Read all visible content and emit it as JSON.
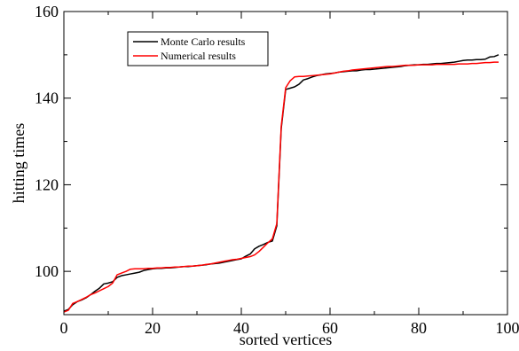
{
  "chart_data": {
    "type": "line",
    "title": "",
    "xlabel": "sorted vertices",
    "ylabel": "hitting times",
    "xlim": [
      0,
      100
    ],
    "ylim": [
      90,
      160
    ],
    "xticks": [
      0,
      20,
      40,
      60,
      80,
      100
    ],
    "xtick_labels": [
      "0",
      "20",
      "40",
      "60",
      "80",
      "100"
    ],
    "yticks": [
      100,
      120,
      140,
      160
    ],
    "ytick_labels": [
      "100",
      "120",
      "140",
      "160"
    ],
    "grid": false,
    "legend_position": "top-left",
    "series": [
      {
        "name": "Monte Carlo results",
        "color": "#000000",
        "points": [
          [
            0,
            90.8
          ],
          [
            1,
            91.2
          ],
          [
            2,
            92.3
          ],
          [
            3,
            93.0
          ],
          [
            4,
            93.4
          ],
          [
            5,
            93.9
          ],
          [
            6,
            94.6
          ],
          [
            7,
            95.4
          ],
          [
            8,
            96.1
          ],
          [
            9,
            97.1
          ],
          [
            10,
            97.3
          ],
          [
            11,
            97.6
          ],
          [
            12,
            98.6
          ],
          [
            13,
            99.0
          ],
          [
            14,
            99.2
          ],
          [
            15,
            99.4
          ],
          [
            16,
            99.6
          ],
          [
            17,
            99.8
          ],
          [
            18,
            100.2
          ],
          [
            19,
            100.4
          ],
          [
            20,
            100.6
          ],
          [
            21,
            100.7
          ],
          [
            22,
            100.7
          ],
          [
            23,
            100.8
          ],
          [
            24,
            100.8
          ],
          [
            25,
            100.9
          ],
          [
            26,
            101.0
          ],
          [
            27,
            101.1
          ],
          [
            28,
            101.1
          ],
          [
            29,
            101.2
          ],
          [
            30,
            101.3
          ],
          [
            31,
            101.4
          ],
          [
            32,
            101.5
          ],
          [
            33,
            101.7
          ],
          [
            34,
            101.8
          ],
          [
            35,
            101.9
          ],
          [
            36,
            102.1
          ],
          [
            37,
            102.3
          ],
          [
            38,
            102.5
          ],
          [
            39,
            102.7
          ],
          [
            40,
            102.9
          ],
          [
            41,
            103.5
          ],
          [
            42,
            104.0
          ],
          [
            43,
            105.2
          ],
          [
            44,
            105.8
          ],
          [
            45,
            106.2
          ],
          [
            46,
            106.7
          ],
          [
            47,
            107.0
          ],
          [
            48,
            110.5
          ],
          [
            49,
            133.0
          ],
          [
            50,
            142.0
          ],
          [
            51,
            142.3
          ],
          [
            52,
            142.6
          ],
          [
            53,
            143.2
          ],
          [
            54,
            144.2
          ],
          [
            55,
            144.5
          ],
          [
            56,
            144.9
          ],
          [
            57,
            145.2
          ],
          [
            58,
            145.4
          ],
          [
            59,
            145.6
          ],
          [
            60,
            145.7
          ],
          [
            61,
            145.8
          ],
          [
            62,
            146.0
          ],
          [
            63,
            146.1
          ],
          [
            64,
            146.2
          ],
          [
            65,
            146.3
          ],
          [
            66,
            146.3
          ],
          [
            67,
            146.5
          ],
          [
            68,
            146.6
          ],
          [
            69,
            146.6
          ],
          [
            70,
            146.7
          ],
          [
            71,
            146.8
          ],
          [
            72,
            146.9
          ],
          [
            73,
            147.0
          ],
          [
            74,
            147.1
          ],
          [
            75,
            147.2
          ],
          [
            76,
            147.3
          ],
          [
            77,
            147.5
          ],
          [
            78,
            147.6
          ],
          [
            79,
            147.7
          ],
          [
            80,
            147.7
          ],
          [
            81,
            147.8
          ],
          [
            82,
            147.8
          ],
          [
            83,
            147.9
          ],
          [
            84,
            148.0
          ],
          [
            85,
            148.0
          ],
          [
            86,
            148.1
          ],
          [
            87,
            148.2
          ],
          [
            88,
            148.3
          ],
          [
            89,
            148.5
          ],
          [
            90,
            148.7
          ],
          [
            91,
            148.8
          ],
          [
            92,
            148.8
          ],
          [
            93,
            148.9
          ],
          [
            94,
            148.9
          ],
          [
            95,
            149.0
          ],
          [
            96,
            149.5
          ],
          [
            97,
            149.6
          ],
          [
            98,
            150.0
          ]
        ]
      },
      {
        "name": "Numerical results",
        "color": "#ff0000",
        "points": [
          [
            0,
            90.6
          ],
          [
            1,
            91.0
          ],
          [
            2,
            92.6
          ],
          [
            3,
            93.0
          ],
          [
            4,
            93.5
          ],
          [
            5,
            94.0
          ],
          [
            6,
            94.6
          ],
          [
            7,
            95.0
          ],
          [
            8,
            95.5
          ],
          [
            9,
            96.0
          ],
          [
            10,
            96.5
          ],
          [
            11,
            97.3
          ],
          [
            12,
            99.2
          ],
          [
            13,
            99.6
          ],
          [
            14,
            100.0
          ],
          [
            15,
            100.5
          ],
          [
            16,
            100.6
          ],
          [
            17,
            100.6
          ],
          [
            18,
            100.6
          ],
          [
            19,
            100.7
          ],
          [
            20,
            100.7
          ],
          [
            21,
            100.8
          ],
          [
            22,
            100.8
          ],
          [
            23,
            100.9
          ],
          [
            24,
            100.9
          ],
          [
            25,
            101.0
          ],
          [
            26,
            101.0
          ],
          [
            27,
            101.1
          ],
          [
            28,
            101.2
          ],
          [
            29,
            101.2
          ],
          [
            30,
            101.3
          ],
          [
            31,
            101.4
          ],
          [
            32,
            101.6
          ],
          [
            33,
            101.7
          ],
          [
            34,
            101.9
          ],
          [
            35,
            102.1
          ],
          [
            36,
            102.3
          ],
          [
            37,
            102.5
          ],
          [
            38,
            102.7
          ],
          [
            39,
            102.8
          ],
          [
            40,
            103.0
          ],
          [
            41,
            103.2
          ],
          [
            42,
            103.4
          ],
          [
            43,
            103.8
          ],
          [
            44,
            104.6
          ],
          [
            45,
            105.6
          ],
          [
            46,
            106.6
          ],
          [
            47,
            107.5
          ],
          [
            48,
            111.0
          ],
          [
            49,
            133.5
          ],
          [
            50,
            142.4
          ],
          [
            51,
            144.0
          ],
          [
            52,
            144.9
          ],
          [
            53,
            145.0
          ],
          [
            54,
            145.0
          ],
          [
            55,
            145.1
          ],
          [
            56,
            145.2
          ],
          [
            57,
            145.3
          ],
          [
            58,
            145.4
          ],
          [
            59,
            145.5
          ],
          [
            60,
            145.6
          ],
          [
            61,
            145.8
          ],
          [
            62,
            146.0
          ],
          [
            63,
            146.2
          ],
          [
            64,
            146.3
          ],
          [
            65,
            146.5
          ],
          [
            66,
            146.6
          ],
          [
            67,
            146.7
          ],
          [
            68,
            146.8
          ],
          [
            69,
            146.9
          ],
          [
            70,
            147.0
          ],
          [
            71,
            147.1
          ],
          [
            72,
            147.2
          ],
          [
            73,
            147.3
          ],
          [
            74,
            147.3
          ],
          [
            75,
            147.4
          ],
          [
            76,
            147.5
          ],
          [
            77,
            147.6
          ],
          [
            78,
            147.6
          ],
          [
            79,
            147.6
          ],
          [
            80,
            147.7
          ],
          [
            81,
            147.7
          ],
          [
            82,
            147.7
          ],
          [
            83,
            147.7
          ],
          [
            84,
            147.8
          ],
          [
            85,
            147.8
          ],
          [
            86,
            147.8
          ],
          [
            87,
            147.8
          ],
          [
            88,
            147.8
          ],
          [
            89,
            147.9
          ],
          [
            90,
            147.9
          ],
          [
            91,
            147.9
          ],
          [
            92,
            148.0
          ],
          [
            93,
            148.0
          ],
          [
            94,
            148.1
          ],
          [
            95,
            148.2
          ],
          [
            96,
            148.2
          ],
          [
            97,
            148.3
          ],
          [
            98,
            148.3
          ]
        ]
      }
    ]
  }
}
